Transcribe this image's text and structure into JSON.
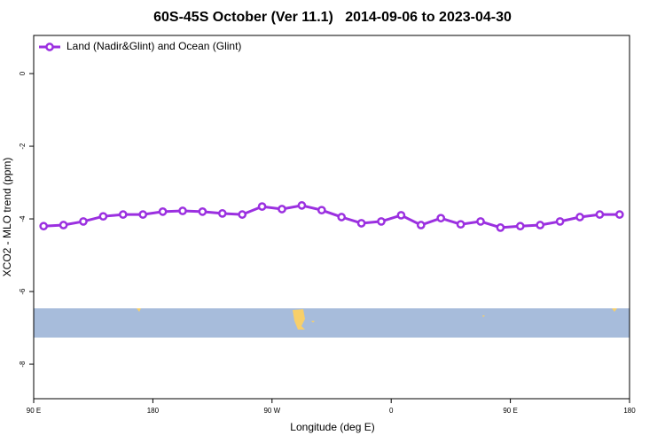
{
  "chart_data": {
    "type": "line",
    "title": "60S-45S October (Ver 11.1)   2014-09-06 to 2023-04-30",
    "xlabel": "Longitude (deg E)",
    "ylabel": "XCO2 - MLO trend (ppm)",
    "x": [
      97.5,
      112.5,
      127.5,
      142.5,
      157.5,
      172.5,
      187.5,
      202.5,
      217.5,
      232.5,
      247.5,
      262.5,
      277.5,
      292.5,
      307.5,
      322.5,
      337.5,
      352.5,
      367.5,
      382.5,
      397.5,
      412.5,
      427.5,
      442.5,
      457.5,
      472.5,
      487.5,
      502.5,
      517.5,
      532.5
    ],
    "series": [
      {
        "name": "Land (Nadir&Glint) and Ocean (Glint)",
        "color": "#9b30e0",
        "values": [
          -4.2,
          -4.17,
          -4.07,
          -3.93,
          -3.88,
          -3.88,
          -3.8,
          -3.78,
          -3.8,
          -3.85,
          -3.88,
          -3.66,
          -3.73,
          -3.63,
          -3.76,
          -3.95,
          -4.12,
          -4.07,
          -3.9,
          -4.17,
          -3.98,
          -4.15,
          -4.07,
          -4.24,
          -4.2,
          -4.17,
          -4.07,
          -3.95,
          -3.88,
          -3.88
        ]
      }
    ],
    "xlim": [
      90,
      540
    ],
    "xticks": [
      {
        "value": 90,
        "label": "90 E"
      },
      180,
      {
        "value": 270,
        "label": "90 W"
      },
      {
        "value": 360,
        "label": "0"
      },
      {
        "value": 450,
        "label": "90 E"
      },
      {
        "value": 540,
        "label": "180"
      }
    ],
    "ylim": [
      -8.95,
      1.05
    ],
    "yticks": [
      0,
      -2,
      -4,
      -6,
      -8
    ],
    "legend": "top-left"
  }
}
